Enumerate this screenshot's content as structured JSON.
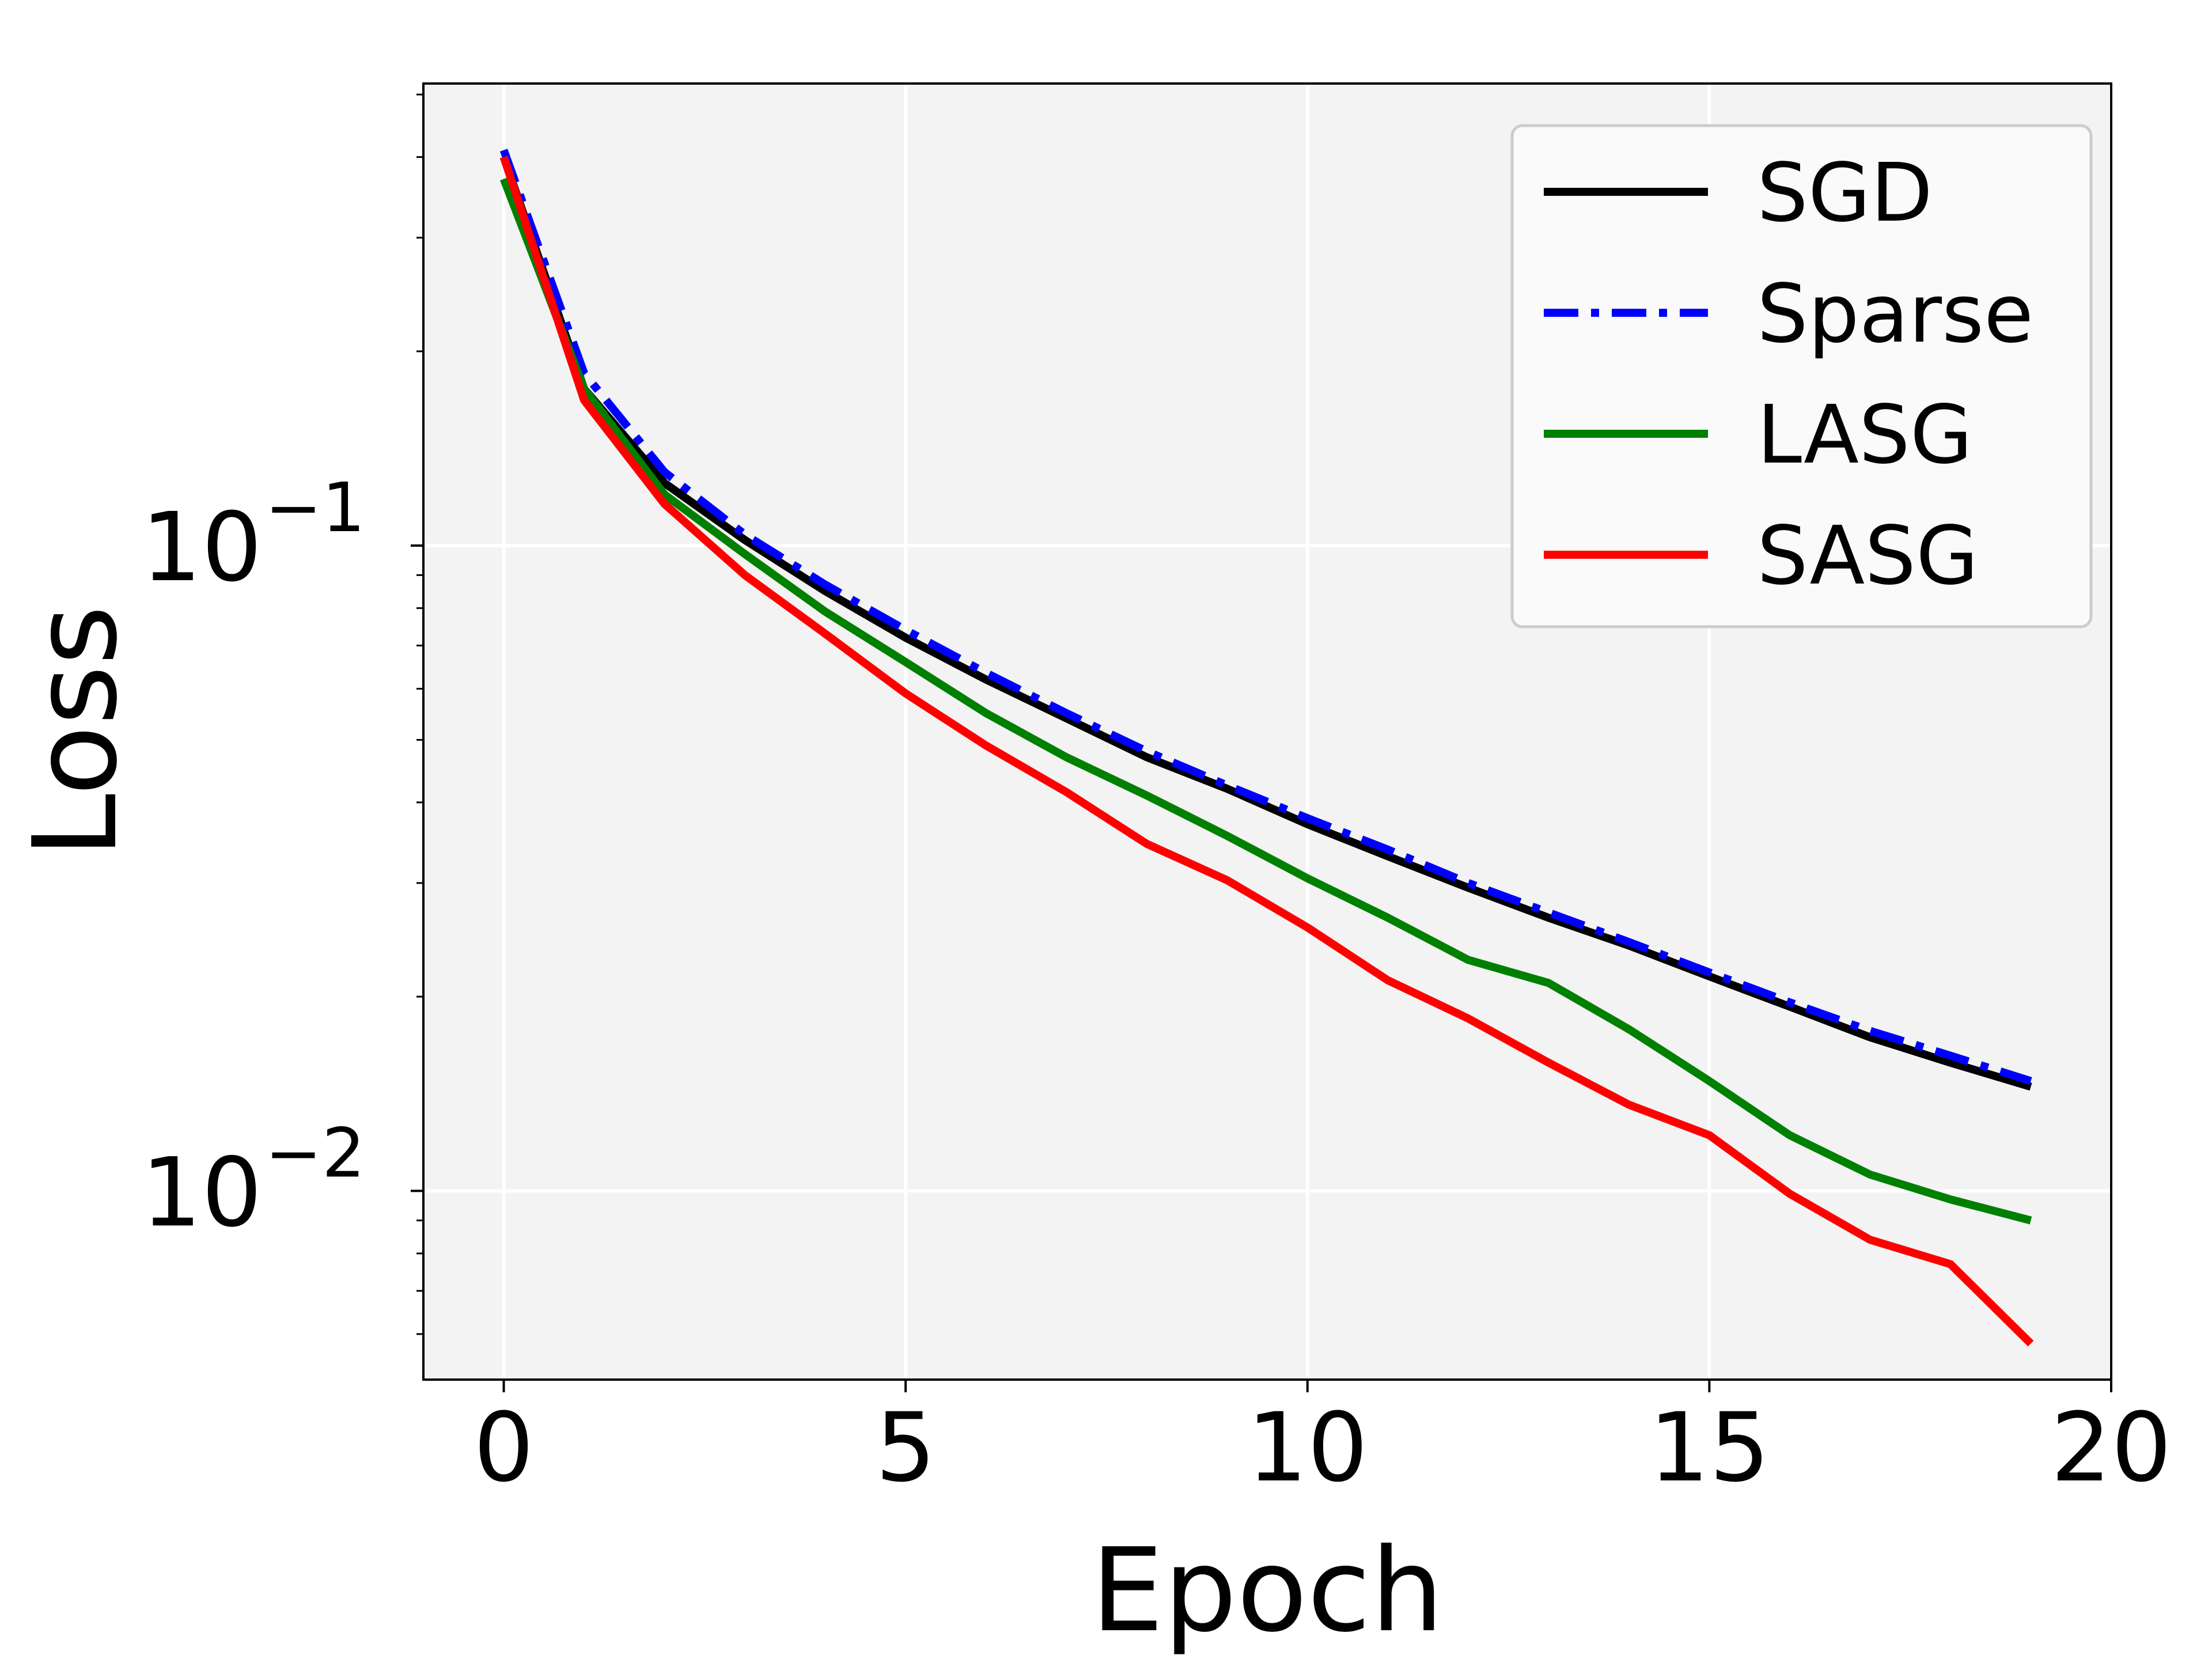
{
  "chart_data": {
    "type": "line",
    "title": "",
    "xlabel": "Epoch",
    "ylabel": "Loss",
    "xlim": [
      -1,
      20
    ],
    "ylim": [
      0.0051,
      0.52
    ],
    "yscale": "log",
    "grid": true,
    "legend_position": "top-right",
    "x_ticks": [
      0,
      5,
      10,
      15,
      20
    ],
    "x_tick_labels": [
      "0",
      "5",
      "10",
      "15",
      "20"
    ],
    "y_major_ticks": [
      {
        "value": 0.1,
        "base": "10",
        "exponent": "−1"
      },
      {
        "value": 0.01,
        "base": "10",
        "exponent": "−2"
      }
    ],
    "x": [
      0,
      1,
      2,
      3,
      4,
      5,
      6,
      7,
      8,
      9,
      10,
      11,
      12,
      13,
      14,
      15,
      16,
      17,
      18,
      19
    ],
    "series": [
      {
        "name": "SGD",
        "color": "#000000",
        "dash": "solid",
        "values": [
          0.4,
          0.175,
          0.125,
          0.102,
          0.085,
          0.072,
          0.062,
          0.054,
          0.047,
          0.042,
          0.037,
          0.033,
          0.0295,
          0.0265,
          0.024,
          0.0215,
          0.0193,
          0.0173,
          0.0158,
          0.0145
        ]
      },
      {
        "name": "Sparse",
        "color": "#0000ff",
        "dash": "dashdot",
        "values": [
          0.41,
          0.185,
          0.13,
          0.104,
          0.087,
          0.074,
          0.0635,
          0.055,
          0.048,
          0.0425,
          0.0378,
          0.0338,
          0.03,
          0.027,
          0.0243,
          0.0218,
          0.0196,
          0.0177,
          0.0162,
          0.0148
        ]
      },
      {
        "name": "LASG",
        "color": "#008000",
        "dash": "solid",
        "values": [
          0.37,
          0.175,
          0.12,
          0.097,
          0.079,
          0.066,
          0.055,
          0.047,
          0.041,
          0.0355,
          0.0305,
          0.0265,
          0.0228,
          0.021,
          0.0178,
          0.0148,
          0.0122,
          0.0106,
          0.0097,
          0.009
        ]
      },
      {
        "name": "SASG",
        "color": "#ff0000",
        "dash": "solid",
        "values": [
          0.4,
          0.168,
          0.116,
          0.09,
          0.073,
          0.059,
          0.049,
          0.0415,
          0.0345,
          0.0303,
          0.0256,
          0.0212,
          0.0185,
          0.0158,
          0.0136,
          0.0122,
          0.0099,
          0.0084,
          0.0077,
          0.0058
        ]
      }
    ]
  }
}
